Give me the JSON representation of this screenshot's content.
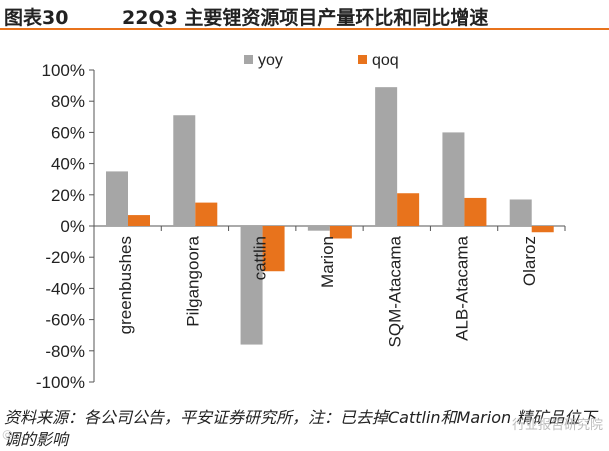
{
  "header": {
    "figure_number": "图表30",
    "title": "22Q3 主要锂资源项目产量环比和同比增速"
  },
  "footer": {
    "source": "资料来源：各公司公告，平安证券研究所，注：已去掉Cattlin和Marion 精矿品位下调的影响"
  },
  "watermark": {
    "text": "行业报告研究院",
    "left_text": "@…"
  },
  "colors": {
    "yoy": "#a6a6a6",
    "qoq": "#e8731c"
  },
  "chart_data": {
    "type": "bar",
    "categories": [
      "greenbushes",
      "Pilgangoora",
      "cattlin",
      "Marion",
      "SQM-Atacama",
      "ALB-Atacama",
      "Olaroz"
    ],
    "series": [
      {
        "name": "yoy",
        "values": [
          35,
          71,
          -76,
          -3,
          89,
          60,
          17
        ]
      },
      {
        "name": "qoq",
        "values": [
          7,
          15,
          -29,
          -8,
          21,
          18,
          -4
        ]
      }
    ],
    "yticks": [
      "100%",
      "80%",
      "60%",
      "40%",
      "20%",
      "0%",
      "-20%",
      "-40%",
      "-60%",
      "-80%",
      "-100%"
    ],
    "ylim": [
      -100,
      100
    ],
    "legend": "top",
    "grid": false
  }
}
